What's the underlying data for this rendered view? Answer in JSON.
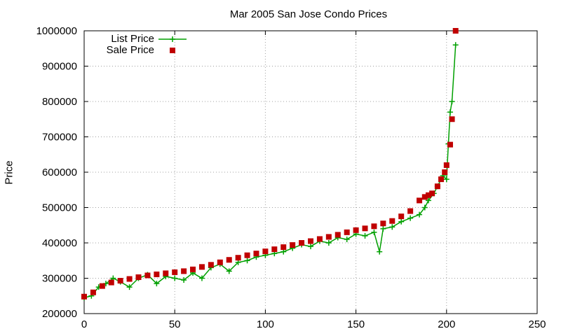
{
  "chart_data": {
    "type": "scatter",
    "title": "Mar 2005 San Jose Condo Prices",
    "xlabel": "",
    "ylabel": "Price",
    "xlim": [
      0,
      250
    ],
    "ylim": [
      200000,
      1000000
    ],
    "xticks": [
      0,
      50,
      100,
      150,
      200,
      250
    ],
    "yticks": [
      200000,
      300000,
      400000,
      500000,
      600000,
      700000,
      800000,
      900000,
      1000000
    ],
    "grid": true,
    "legend_position": "top-left",
    "series": [
      {
        "name": "List Price",
        "style": "line with plus markers",
        "color": "#00a000",
        "x": [
          0,
          4,
          8,
          12,
          16,
          20,
          25,
          30,
          35,
          40,
          45,
          50,
          55,
          60,
          65,
          70,
          75,
          80,
          85,
          90,
          95,
          100,
          105,
          110,
          115,
          120,
          125,
          130,
          135,
          140,
          145,
          150,
          155,
          160,
          163,
          165,
          170,
          175,
          180,
          185,
          188,
          190,
          193,
          195,
          198,
          200,
          201,
          202,
          203,
          205
        ],
        "y": [
          245000,
          250000,
          275000,
          285000,
          300000,
          290000,
          275000,
          300000,
          310000,
          285000,
          305000,
          300000,
          295000,
          315000,
          300000,
          330000,
          340000,
          320000,
          345000,
          350000,
          360000,
          365000,
          370000,
          375000,
          385000,
          395000,
          390000,
          405000,
          400000,
          415000,
          410000,
          425000,
          420000,
          430000,
          375000,
          440000,
          445000,
          460000,
          470000,
          480000,
          500000,
          520000,
          540000,
          560000,
          590000,
          580000,
          680000,
          770000,
          800000,
          960000
        ]
      },
      {
        "name": "Sale Price",
        "style": "square markers",
        "color": "#c00000",
        "x": [
          0,
          5,
          10,
          15,
          20,
          25,
          30,
          35,
          40,
          45,
          50,
          55,
          60,
          65,
          70,
          75,
          80,
          85,
          90,
          95,
          100,
          105,
          110,
          115,
          120,
          125,
          130,
          135,
          140,
          145,
          150,
          155,
          160,
          165,
          170,
          175,
          180,
          185,
          188,
          190,
          192,
          195,
          197,
          199,
          200,
          202,
          203,
          205
        ],
        "y": [
          248000,
          260000,
          278000,
          288000,
          293000,
          298000,
          303000,
          308000,
          311000,
          314000,
          317000,
          320000,
          325000,
          332000,
          338000,
          345000,
          352000,
          358000,
          365000,
          370000,
          376000,
          382000,
          388000,
          394000,
          400000,
          405000,
          411000,
          417000,
          423000,
          430000,
          436000,
          441000,
          447000,
          455000,
          462000,
          475000,
          490000,
          520000,
          530000,
          535000,
          540000,
          560000,
          580000,
          600000,
          620000,
          678000,
          750000,
          1000000
        ]
      }
    ]
  }
}
